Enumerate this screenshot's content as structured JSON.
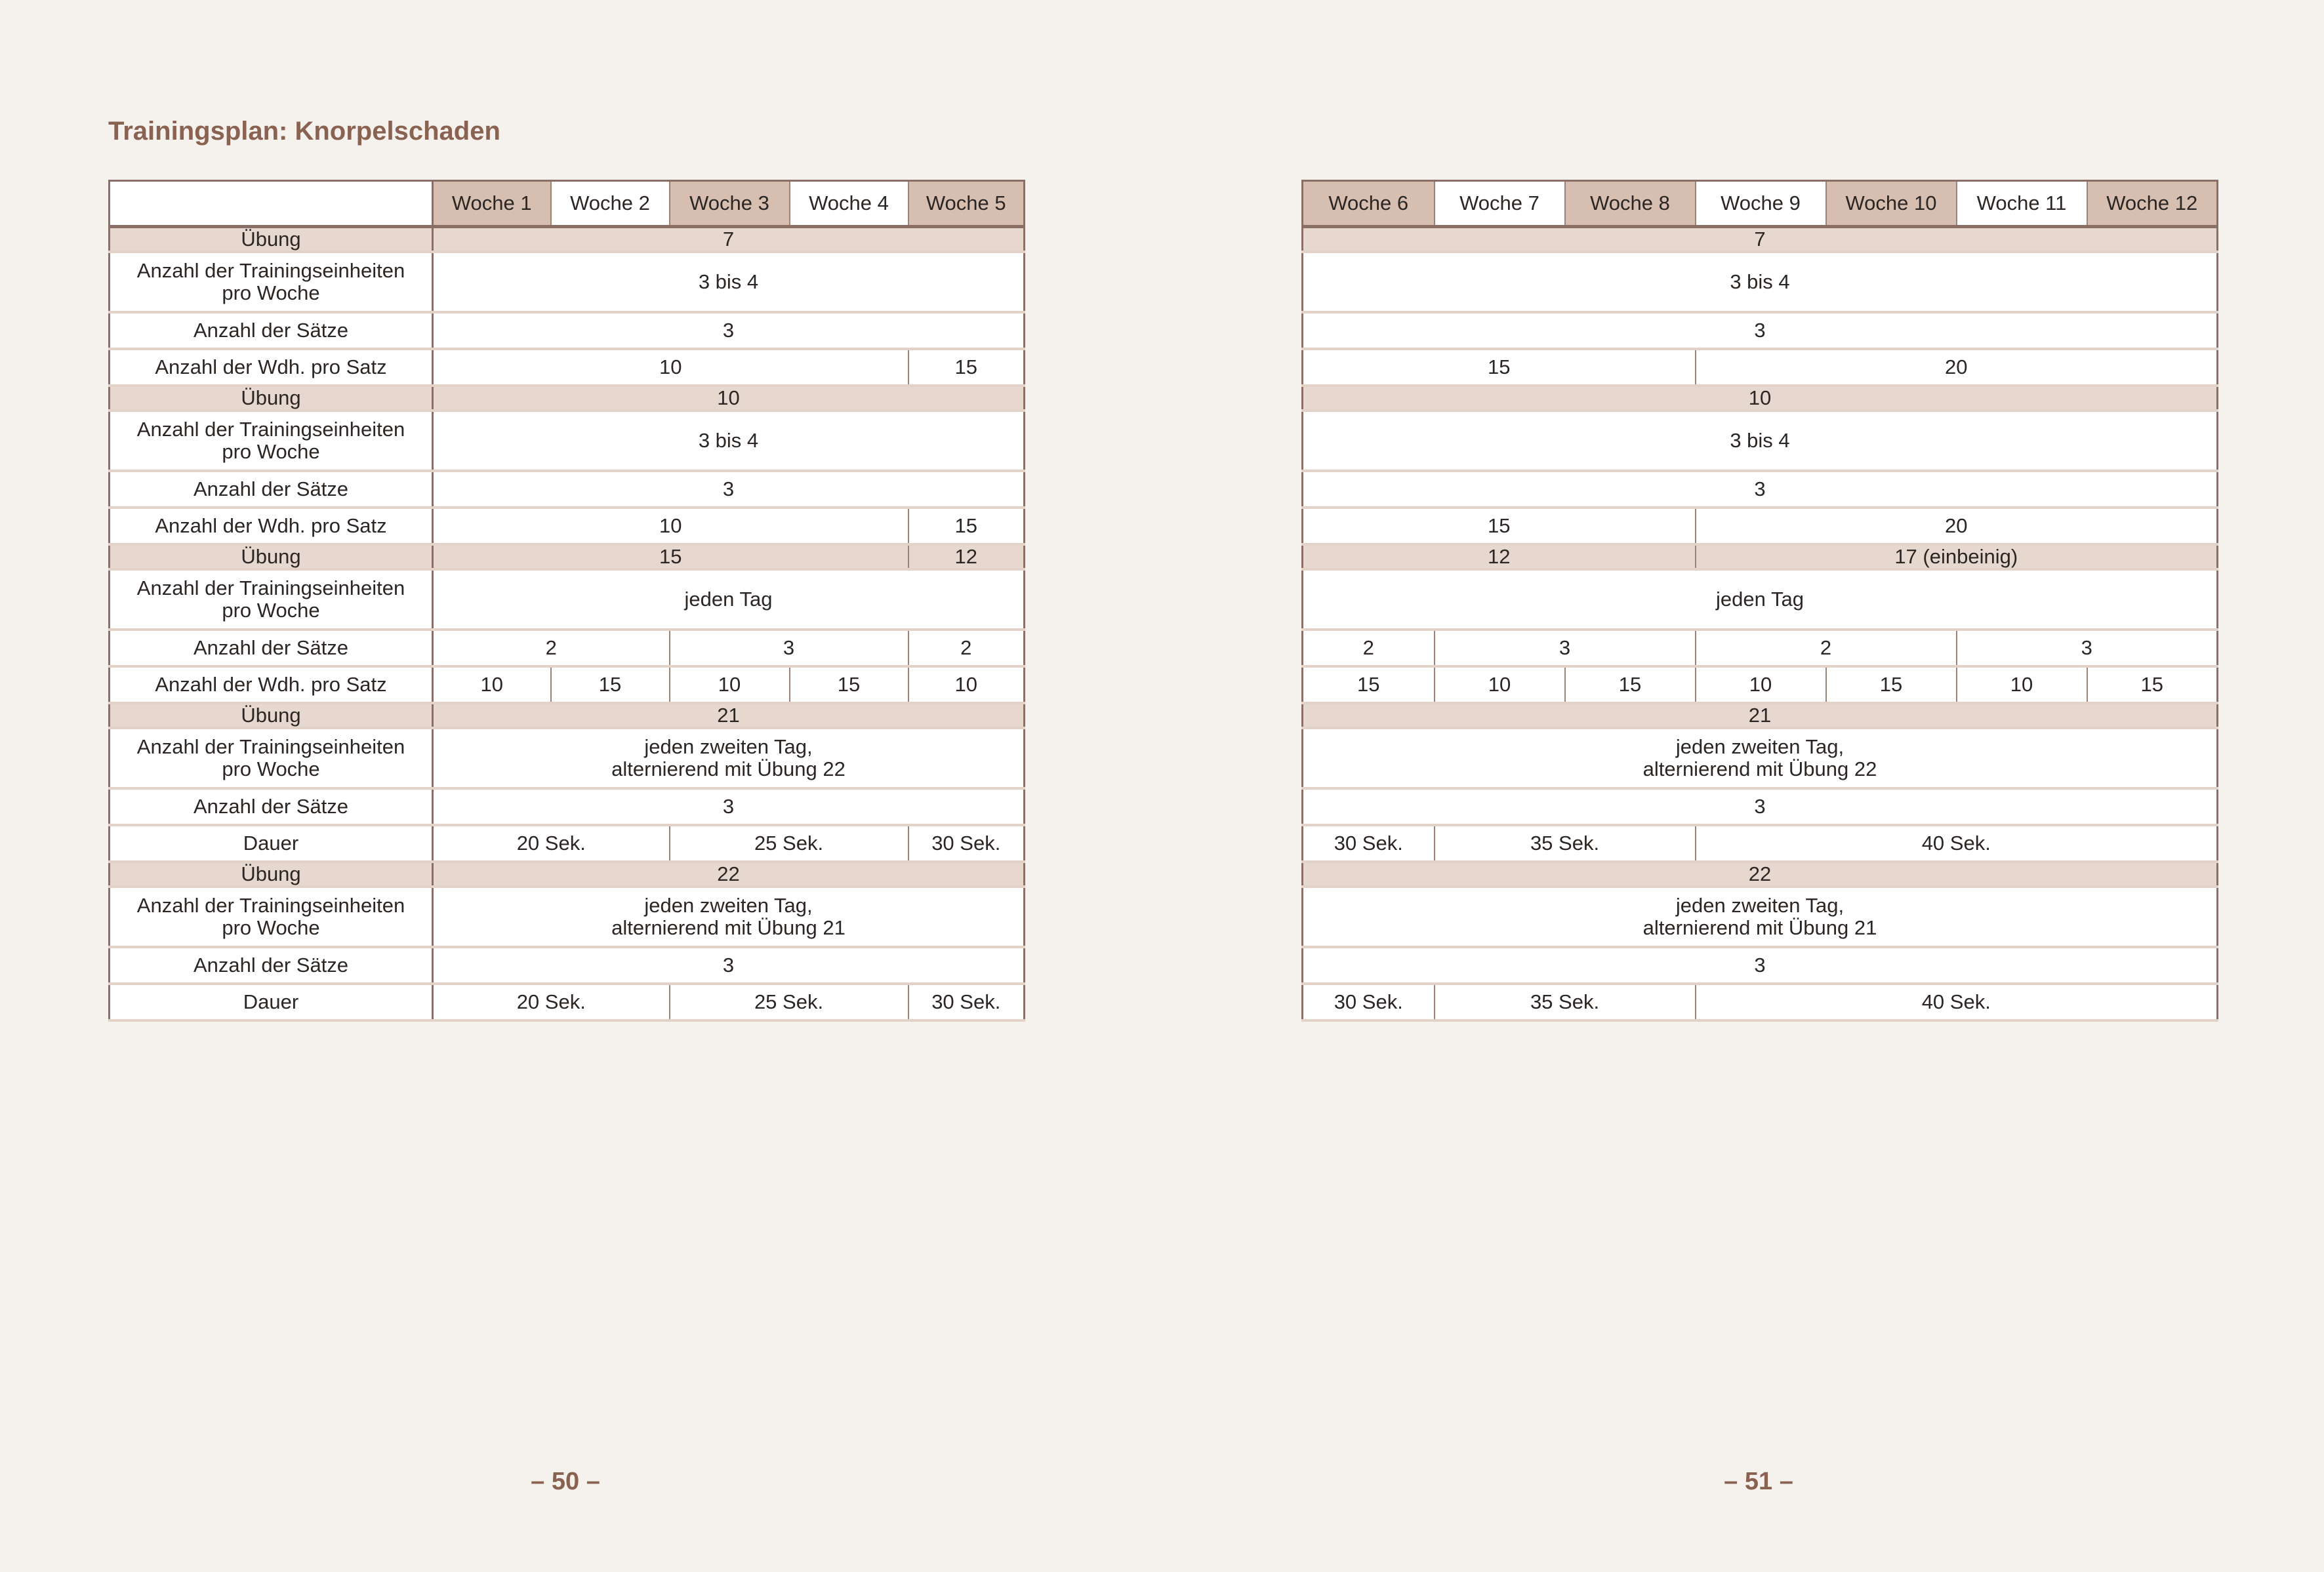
{
  "title": "Trainingsplan: Knorpelschaden",
  "page_numbers": [
    "– 50 –",
    "– 51 –"
  ],
  "colors": {
    "background": "#f5f1ec",
    "header_shaded": "#d6bfb0",
    "exercise_row": "#e6d8ce",
    "border": "#8b6e65",
    "title": "#8a6252"
  },
  "left_table": {
    "headers": [
      {
        "label": "Woche 1",
        "shaded": true
      },
      {
        "label": "Woche 2",
        "shaded": false
      },
      {
        "label": "Woche 3",
        "shaded": true
      },
      {
        "label": "Woche 4",
        "shaded": false
      },
      {
        "label": "Woche 5",
        "shaded": true
      }
    ],
    "rows": [
      {
        "label": "Übung",
        "kind": "ex",
        "cells": [
          {
            "text": "7",
            "span": 5
          }
        ]
      },
      {
        "label": "Anzahl der Trainingseinheiten\npro Woche",
        "kind": "tall",
        "cells": [
          {
            "text": "3 bis 4",
            "span": 5
          }
        ]
      },
      {
        "label": "Anzahl der Sätze",
        "kind": "short",
        "cells": [
          {
            "text": "3",
            "span": 5
          }
        ]
      },
      {
        "label": "Anzahl der Wdh. pro Satz",
        "kind": "short",
        "cells": [
          {
            "text": "10",
            "span": 4
          },
          {
            "text": "15",
            "span": 1
          }
        ]
      },
      {
        "label": "Übung",
        "kind": "ex",
        "cells": [
          {
            "text": "10",
            "span": 5
          }
        ]
      },
      {
        "label": "Anzahl der Trainingseinheiten\npro Woche",
        "kind": "tall",
        "cells": [
          {
            "text": "3 bis 4",
            "span": 5
          }
        ]
      },
      {
        "label": "Anzahl der Sätze",
        "kind": "short",
        "cells": [
          {
            "text": "3",
            "span": 5
          }
        ]
      },
      {
        "label": "Anzahl der Wdh. pro Satz",
        "kind": "short",
        "cells": [
          {
            "text": "10",
            "span": 4
          },
          {
            "text": "15",
            "span": 1
          }
        ]
      },
      {
        "label": "Übung",
        "kind": "ex",
        "cells": [
          {
            "text": "15",
            "span": 4
          },
          {
            "text": "12",
            "span": 1
          }
        ]
      },
      {
        "label": "Anzahl der Trainingseinheiten\npro Woche",
        "kind": "tall",
        "cells": [
          {
            "text": "jeden Tag",
            "span": 5
          }
        ]
      },
      {
        "label": "Anzahl der Sätze",
        "kind": "short",
        "cells": [
          {
            "text": "2",
            "span": 2
          },
          {
            "text": "3",
            "span": 2
          },
          {
            "text": "2",
            "span": 1
          }
        ]
      },
      {
        "label": "Anzahl der Wdh. pro Satz",
        "kind": "short",
        "cells": [
          {
            "text": "10",
            "span": 1
          },
          {
            "text": "15",
            "span": 1
          },
          {
            "text": "10",
            "span": 1
          },
          {
            "text": "15",
            "span": 1
          },
          {
            "text": "10",
            "span": 1
          }
        ]
      },
      {
        "label": "Übung",
        "kind": "ex",
        "cells": [
          {
            "text": "21",
            "span": 5
          }
        ]
      },
      {
        "label": "Anzahl der Trainingseinheiten\npro Woche",
        "kind": "tall",
        "cells": [
          {
            "text": "jeden zweiten Tag,\nalternierend mit Übung 22",
            "span": 5
          }
        ]
      },
      {
        "label": "Anzahl der Sätze",
        "kind": "short",
        "cells": [
          {
            "text": "3",
            "span": 5
          }
        ]
      },
      {
        "label": "Dauer",
        "kind": "short",
        "cells": [
          {
            "text": "20 Sek.",
            "span": 2
          },
          {
            "text": "25 Sek.",
            "span": 2
          },
          {
            "text": "30 Sek.",
            "span": 1
          }
        ]
      },
      {
        "label": "Übung",
        "kind": "ex",
        "cells": [
          {
            "text": "22",
            "span": 5
          }
        ]
      },
      {
        "label": "Anzahl der Trainingseinheiten\npro Woche",
        "kind": "tall",
        "cells": [
          {
            "text": "jeden zweiten Tag,\nalternierend mit Übung 21",
            "span": 5
          }
        ]
      },
      {
        "label": "Anzahl der Sätze",
        "kind": "short",
        "cells": [
          {
            "text": "3",
            "span": 5
          }
        ]
      },
      {
        "label": "Dauer",
        "kind": "short",
        "cells": [
          {
            "text": "20 Sek.",
            "span": 2
          },
          {
            "text": "25 Sek.",
            "span": 2
          },
          {
            "text": "30 Sek.",
            "span": 1
          }
        ]
      }
    ]
  },
  "right_table": {
    "headers": [
      {
        "label": "Woche 6",
        "shaded": true
      },
      {
        "label": "Woche 7",
        "shaded": false
      },
      {
        "label": "Woche 8",
        "shaded": true
      },
      {
        "label": "Woche 9",
        "shaded": false
      },
      {
        "label": "Woche 10",
        "shaded": true
      },
      {
        "label": "Woche 11",
        "shaded": false
      },
      {
        "label": "Woche 12",
        "shaded": true
      }
    ],
    "rows": [
      {
        "kind": "ex",
        "cells": [
          {
            "text": "7",
            "span": 7
          }
        ]
      },
      {
        "kind": "tall",
        "cells": [
          {
            "text": "3 bis 4",
            "span": 7
          }
        ]
      },
      {
        "kind": "short",
        "cells": [
          {
            "text": "3",
            "span": 7
          }
        ]
      },
      {
        "kind": "short",
        "cells": [
          {
            "text": "15",
            "span": 3
          },
          {
            "text": "20",
            "span": 4
          }
        ]
      },
      {
        "kind": "ex",
        "cells": [
          {
            "text": "10",
            "span": 7
          }
        ]
      },
      {
        "kind": "tall",
        "cells": [
          {
            "text": "3 bis 4",
            "span": 7
          }
        ]
      },
      {
        "kind": "short",
        "cells": [
          {
            "text": "3",
            "span": 7
          }
        ]
      },
      {
        "kind": "short",
        "cells": [
          {
            "text": "15",
            "span": 3
          },
          {
            "text": "20",
            "span": 4
          }
        ]
      },
      {
        "kind": "ex",
        "cells": [
          {
            "text": "12",
            "span": 3
          },
          {
            "text": "17 (einbeinig)",
            "span": 4
          }
        ]
      },
      {
        "kind": "tall",
        "cells": [
          {
            "text": "jeden Tag",
            "span": 7
          }
        ]
      },
      {
        "kind": "short",
        "cells": [
          {
            "text": "2",
            "span": 1
          },
          {
            "text": "3",
            "span": 2
          },
          {
            "text": "2",
            "span": 2
          },
          {
            "text": "3",
            "span": 2
          }
        ]
      },
      {
        "kind": "short",
        "cells": [
          {
            "text": "15",
            "span": 1
          },
          {
            "text": "10",
            "span": 1
          },
          {
            "text": "15",
            "span": 1
          },
          {
            "text": "10",
            "span": 1
          },
          {
            "text": "15",
            "span": 1
          },
          {
            "text": "10",
            "span": 1
          },
          {
            "text": "15",
            "span": 1
          }
        ]
      },
      {
        "kind": "ex",
        "cells": [
          {
            "text": "21",
            "span": 7
          }
        ]
      },
      {
        "kind": "tall",
        "cells": [
          {
            "text": "jeden zweiten Tag,\nalternierend mit Übung 22",
            "span": 7
          }
        ]
      },
      {
        "kind": "short",
        "cells": [
          {
            "text": "3",
            "span": 7
          }
        ]
      },
      {
        "kind": "short",
        "cells": [
          {
            "text": "30 Sek.",
            "span": 1
          },
          {
            "text": "35 Sek.",
            "span": 2
          },
          {
            "text": "40 Sek.",
            "span": 4
          }
        ]
      },
      {
        "kind": "ex",
        "cells": [
          {
            "text": "22",
            "span": 7
          }
        ]
      },
      {
        "kind": "tall",
        "cells": [
          {
            "text": "jeden zweiten Tag,\nalternierend mit Übung 21",
            "span": 7
          }
        ]
      },
      {
        "kind": "short",
        "cells": [
          {
            "text": "3",
            "span": 7
          }
        ]
      },
      {
        "kind": "short",
        "cells": [
          {
            "text": "30 Sek.",
            "span": 1
          },
          {
            "text": "35 Sek.",
            "span": 2
          },
          {
            "text": "40 Sek.",
            "span": 4
          }
        ]
      }
    ]
  }
}
